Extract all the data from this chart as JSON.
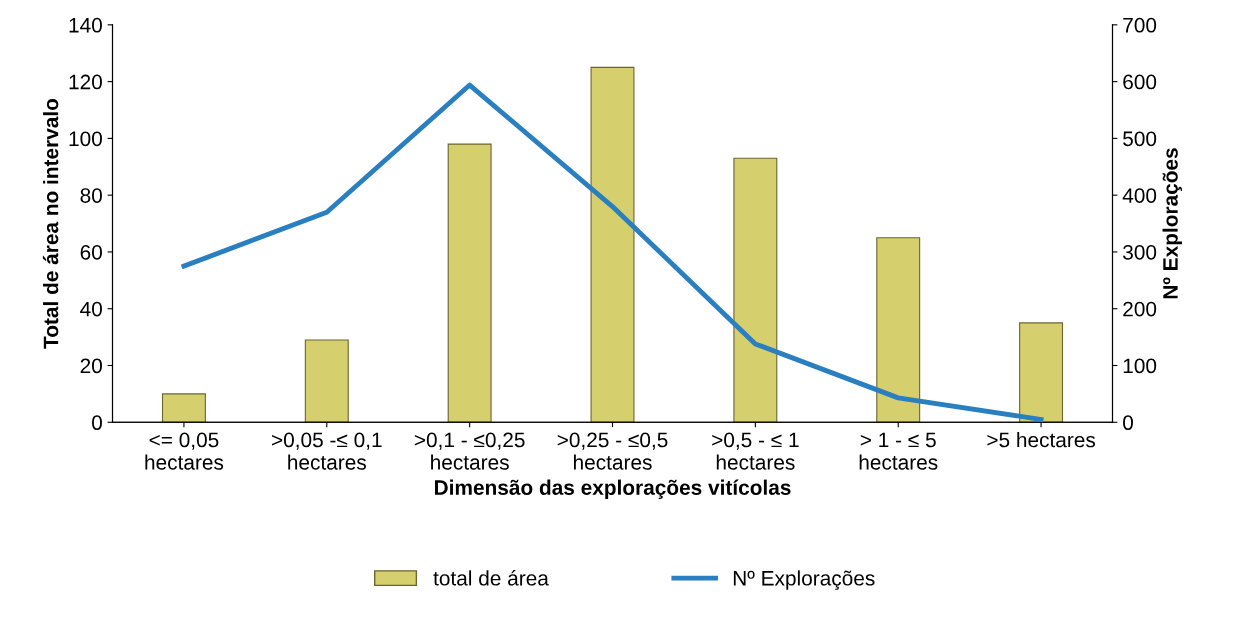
{
  "chart_data": {
    "type": "bar",
    "xlabel": "Dimensão das explorações vitícolas",
    "ylabel": "Total de área no intervalo",
    "y2label": "Nº Explorações",
    "categories": [
      "<= 0,05\nhectares",
      ">0,05 -≤ 0,1\nhectares",
      ">0,1 - ≤0,25\nhectares",
      ">0,25 - ≤0,5\nhectares",
      ">0,5 - ≤ 1\nhectares",
      "> 1 - ≤ 5\nhectares",
      ">5 hectares"
    ],
    "series": [
      {
        "name": "total de área",
        "color": "#d6cf6e",
        "values": [
          10,
          29,
          98,
          125,
          93,
          65,
          35
        ]
      },
      {
        "name": "Nº Explorações",
        "type": "line",
        "axis": "y2",
        "color": "#2a7fc1",
        "values": [
          275,
          370,
          594,
          380,
          138,
          43,
          5
        ]
      }
    ],
    "ylim": [
      0,
      140
    ],
    "yticks": [
      0,
      20,
      40,
      60,
      80,
      100,
      120,
      140
    ],
    "y2lim": [
      0,
      700
    ],
    "y2ticks": [
      0,
      100,
      200,
      300,
      400,
      500,
      600,
      700
    ],
    "grid": false,
    "legend": "bottom",
    "marker": "none"
  }
}
